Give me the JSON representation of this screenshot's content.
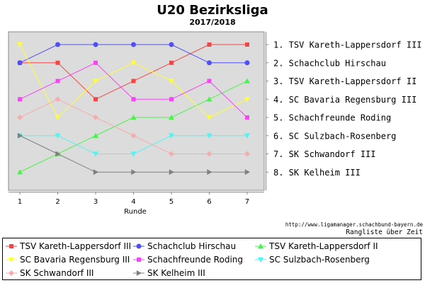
{
  "chart_data": {
    "type": "line",
    "title": "U20 Bezirksliga",
    "subtitle": "2017/2018",
    "xlabel": "Runde",
    "ylabel": "",
    "x": [
      1,
      2,
      3,
      4,
      5,
      6,
      7
    ],
    "xlim": [
      0.7,
      7.45
    ],
    "ylim": [
      0.3,
      9.0
    ],
    "y_inverted": true,
    "grid": false,
    "legend_position": "bottom",
    "rank_labels": [
      "1. TSV Kareth-Lappersdorf III",
      "2. Schachclub Hirschau",
      "3. TSV Kareth-Lappersdorf II",
      "4. SC Bavaria Regensburg III",
      "5. Schachfreunde Roding",
      "6. SC Sulzbach-Rosenberg",
      "7. SK Schwandorf III",
      "8. SK Kelheim III"
    ],
    "series": [
      {
        "name": "TSV Kareth-Lappersdorf III",
        "values": [
          2,
          2,
          4,
          3,
          2,
          1,
          1
        ],
        "color": "#f24646",
        "marker": "square"
      },
      {
        "name": "Schachclub Hirschau",
        "values": [
          2,
          1,
          1,
          1,
          1,
          2,
          2
        ],
        "color": "#4f4ff5",
        "marker": "circle"
      },
      {
        "name": "TSV Kareth-Lappersdorf II",
        "values": [
          8,
          7,
          6,
          5,
          5,
          4,
          3
        ],
        "color": "#4cf24c",
        "marker": "triangle-up"
      },
      {
        "name": "SC Bavaria Regensburg III",
        "values": [
          1,
          5,
          3,
          2,
          3,
          5,
          4
        ],
        "color": "#ffff33",
        "marker": "triangle-down"
      },
      {
        "name": "Schachfreunde Roding",
        "values": [
          4,
          3,
          2,
          4,
          4,
          3,
          5
        ],
        "color": "#f545f5",
        "marker": "square"
      },
      {
        "name": "SC Sulzbach-Rosenberg",
        "values": [
          6,
          6,
          7,
          7,
          6,
          6,
          6
        ],
        "color": "#4ff5f5",
        "marker": "triangle-down"
      },
      {
        "name": "SK Schwandorf III",
        "values": [
          5,
          4,
          5,
          6,
          7,
          7,
          7
        ],
        "color": "#f5aeae",
        "marker": "diamond"
      },
      {
        "name": "SK Kelheim III",
        "values": [
          6,
          7,
          8,
          8,
          8,
          8,
          8
        ],
        "color": "#808080",
        "marker": "triangle-right"
      }
    ]
  },
  "footer": {
    "source_url": "http://www.ligamanager.schachbund-bayern.de",
    "caption": "Rangliste über Zeit"
  }
}
